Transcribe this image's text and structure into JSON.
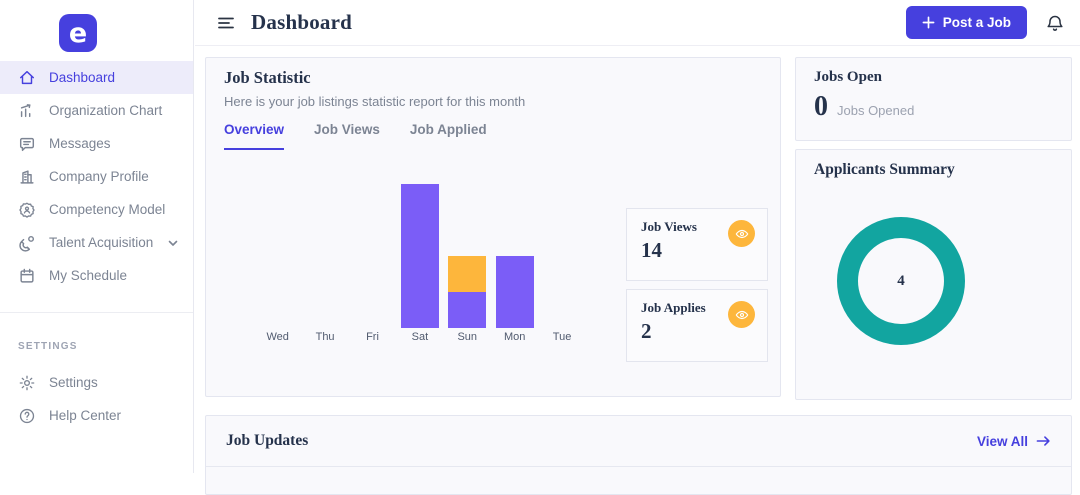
{
  "colors": {
    "primary": "#4640DE",
    "bar_purple": "#7B5DF7",
    "bar_orange": "#FDB63C",
    "donut_teal": "#12A5A0",
    "active_item_bg": "#EDECFA",
    "heading": "#25324B",
    "muted_text": "#7C8493"
  },
  "sidebar": {
    "logo_letter": "e",
    "menu": [
      {
        "label": "Dashboard",
        "icon": "home-icon",
        "active": true
      },
      {
        "label": "Organization Chart",
        "icon": "org-chart-icon",
        "active": false
      },
      {
        "label": "Messages",
        "icon": "messages-icon",
        "active": false
      },
      {
        "label": "Company Profile",
        "icon": "company-icon",
        "active": false
      },
      {
        "label": "Competency Model",
        "icon": "competency-icon",
        "active": false
      },
      {
        "label": "Talent Acquisition",
        "icon": "magnet-icon",
        "active": false,
        "has_chevron": true
      },
      {
        "label": "My Schedule",
        "icon": "calendar-icon",
        "active": false
      }
    ],
    "section_label": "SETTINGS",
    "settings_menu": [
      {
        "label": "Settings",
        "icon": "gear-icon"
      },
      {
        "label": "Help Center",
        "icon": "help-icon"
      }
    ]
  },
  "header": {
    "title": "Dashboard",
    "post_job_label": "Post a Job"
  },
  "job_statistic": {
    "title": "Job Statistic",
    "subtitle": "Here is your job listings statistic report for this month",
    "tabs": [
      {
        "label": "Overview",
        "active": true
      },
      {
        "label": "Job Views",
        "active": false
      },
      {
        "label": "Job Applied",
        "active": false
      }
    ],
    "stat_boxes": [
      {
        "label": "Job Views",
        "value": "14"
      },
      {
        "label": "Job Applies",
        "value": "2"
      }
    ]
  },
  "jobs_open": {
    "title": "Jobs Open",
    "value": "0",
    "caption": "Jobs Opened"
  },
  "applicants_summary": {
    "title": "Applicants Summary",
    "total": "4"
  },
  "job_updates": {
    "title": "Job Updates",
    "view_all_label": "View All"
  },
  "chart_data": [
    {
      "type": "bar",
      "stacked": true,
      "title": "Job Statistic - Overview (this week)",
      "categories": [
        "Wed",
        "Thu",
        "Fri",
        "Sat",
        "Sun",
        "Mon",
        "Tue"
      ],
      "series": [
        {
          "name": "Job Views",
          "color": "#7B5DF7",
          "values": [
            0,
            0,
            0,
            8,
            2,
            4,
            0
          ]
        },
        {
          "name": "Job Applies",
          "color": "#FDB63C",
          "values": [
            0,
            0,
            0,
            0,
            2,
            0,
            0
          ]
        }
      ],
      "ylim": [
        0,
        8
      ],
      "grid": false,
      "legend": false
    },
    {
      "type": "pie",
      "variant": "donut",
      "title": "Applicants Summary",
      "segments": [
        {
          "label": "Applicants",
          "value": 4,
          "color": "#12A5A0"
        }
      ],
      "center_label": "4"
    }
  ]
}
